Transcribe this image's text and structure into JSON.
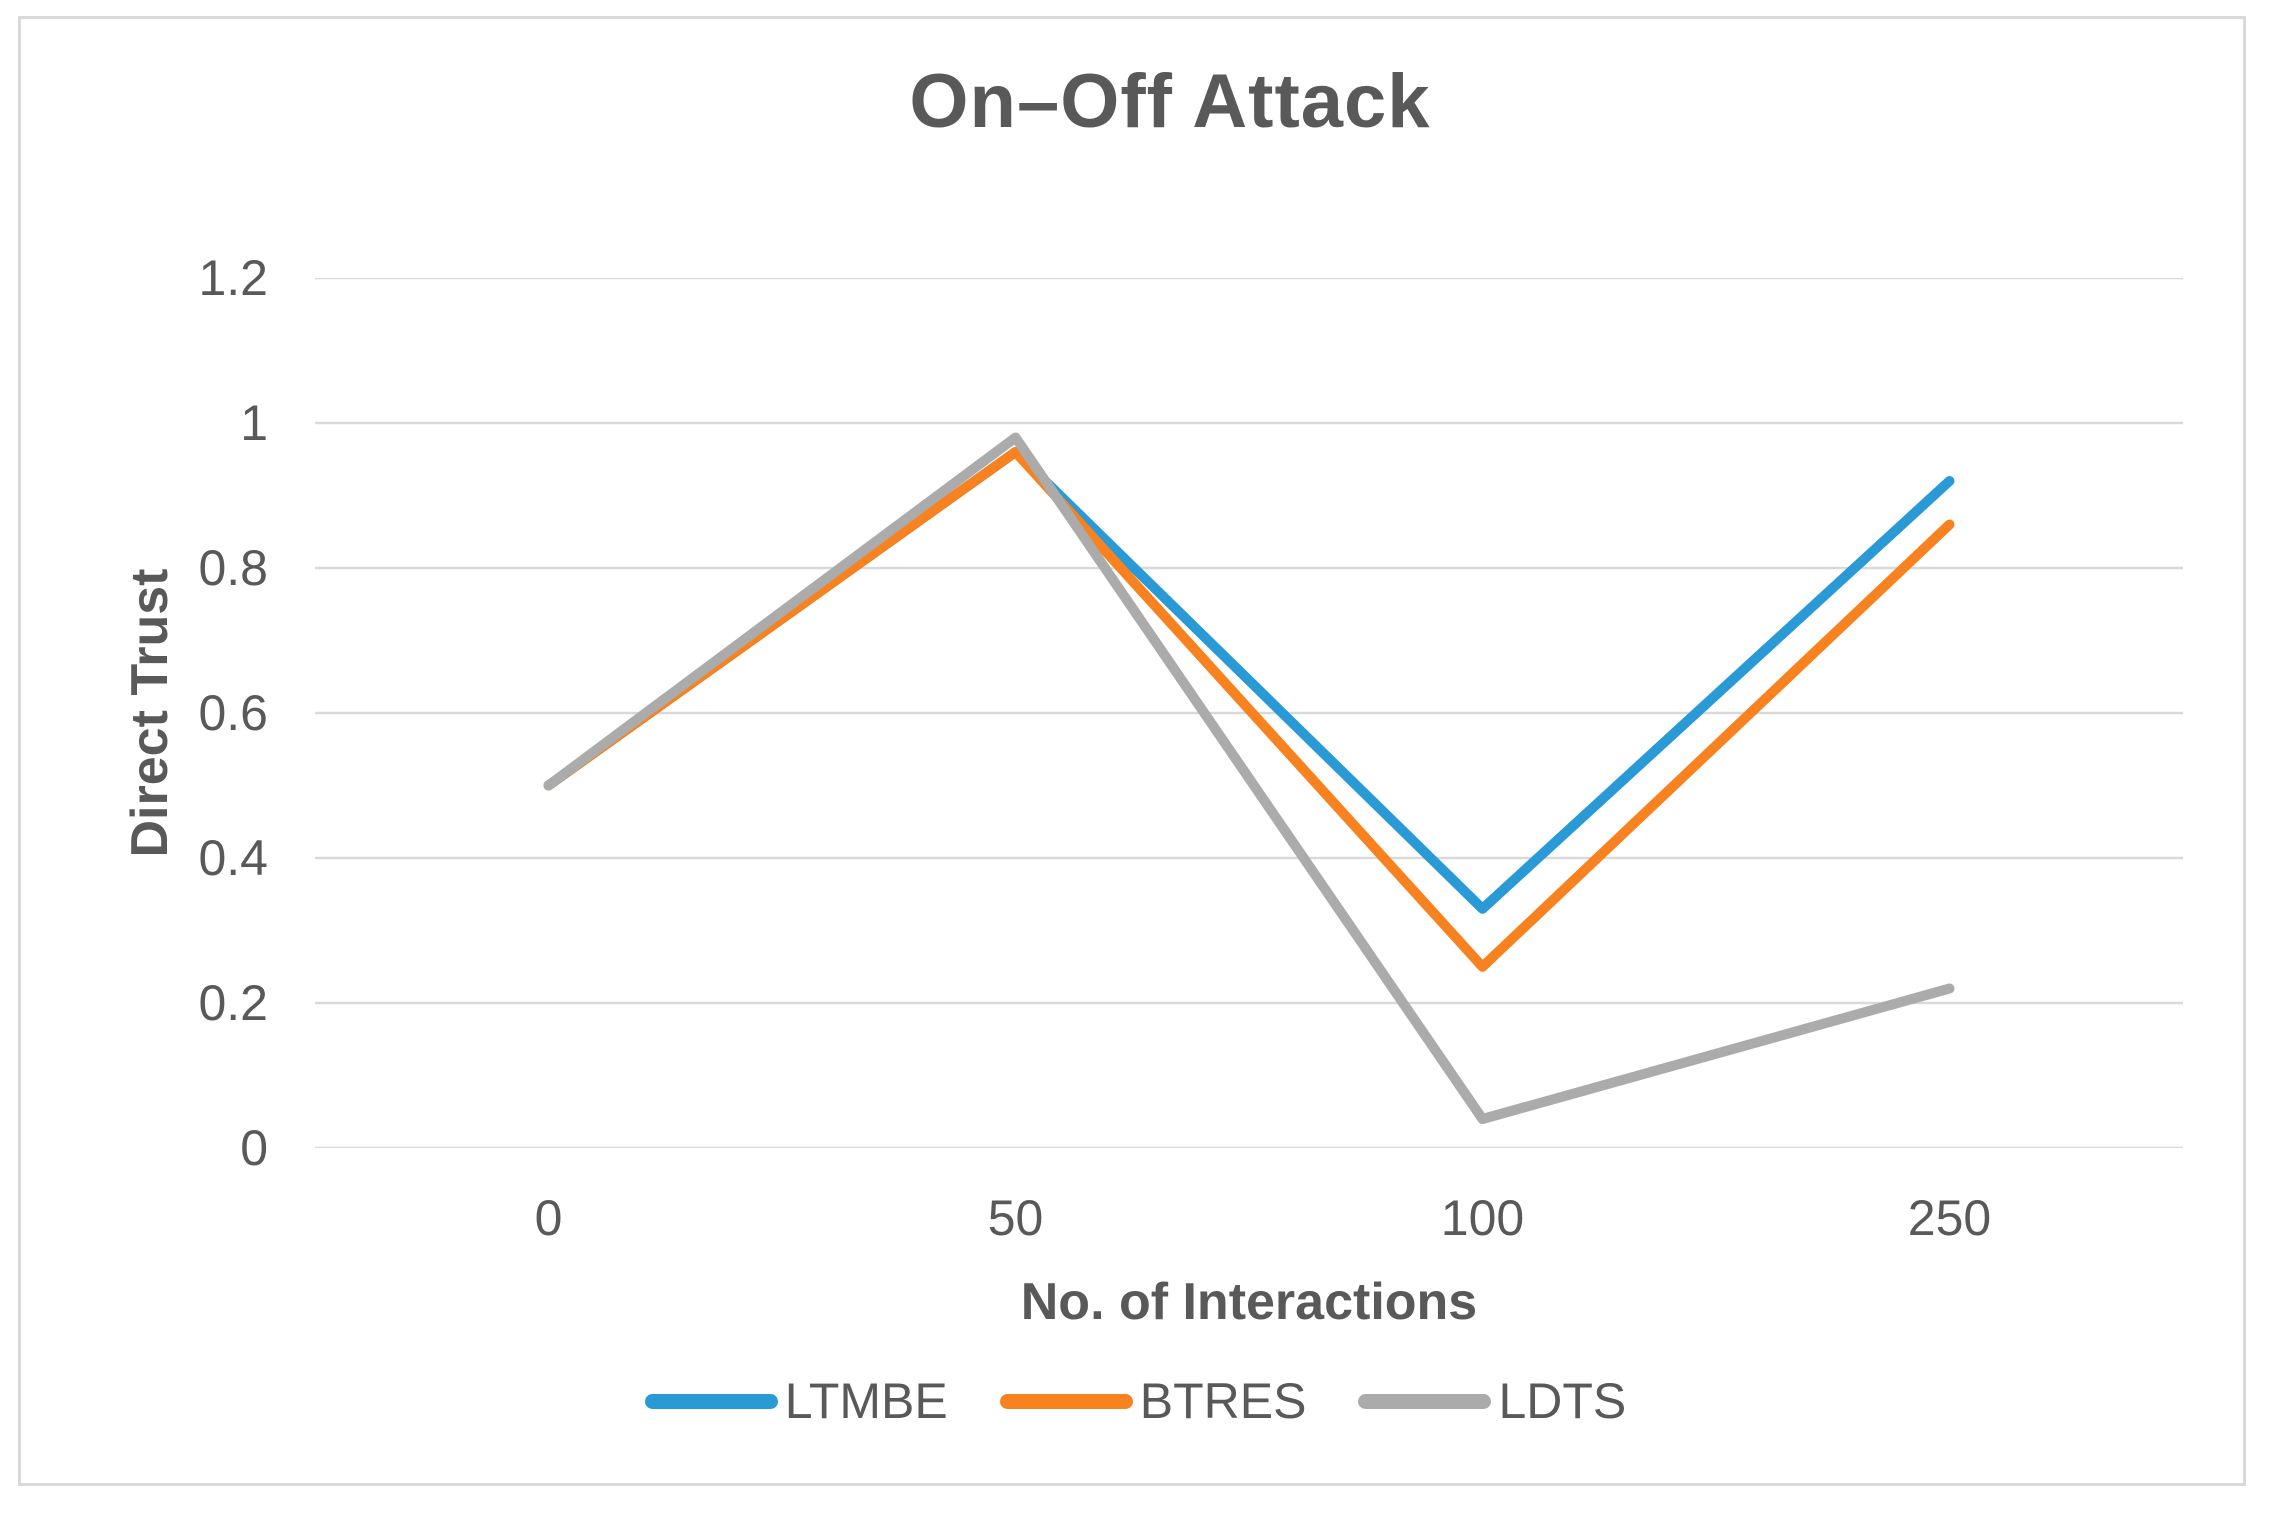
{
  "figure": {
    "background": "#ffffff",
    "border_color": "#d9d9d9"
  },
  "chart_data": {
    "type": "line",
    "title": "On–Off Attack",
    "xlabel": "No. of Interactions",
    "ylabel": "Direct Trust",
    "categories": [
      "0",
      "50",
      "100",
      "250"
    ],
    "y_ticks": [
      "1.2",
      "1",
      "0.8",
      "0.6",
      "0.4",
      "0.2",
      "0"
    ],
    "ylim": [
      0,
      1.2
    ],
    "grid": true,
    "legend_position": "bottom",
    "text_color": "#595959",
    "gridline_color": "#d9d9d9",
    "series": [
      {
        "name": "LTMBE",
        "color": "#2a9ad6",
        "values": [
          0.5,
          0.96,
          0.33,
          0.92
        ]
      },
      {
        "name": "BTRES",
        "color": "#f8821f",
        "values": [
          0.5,
          0.96,
          0.25,
          0.86
        ]
      },
      {
        "name": "LDTS",
        "color": "#ababab",
        "values": [
          0.5,
          0.98,
          0.04,
          0.22
        ]
      }
    ]
  }
}
